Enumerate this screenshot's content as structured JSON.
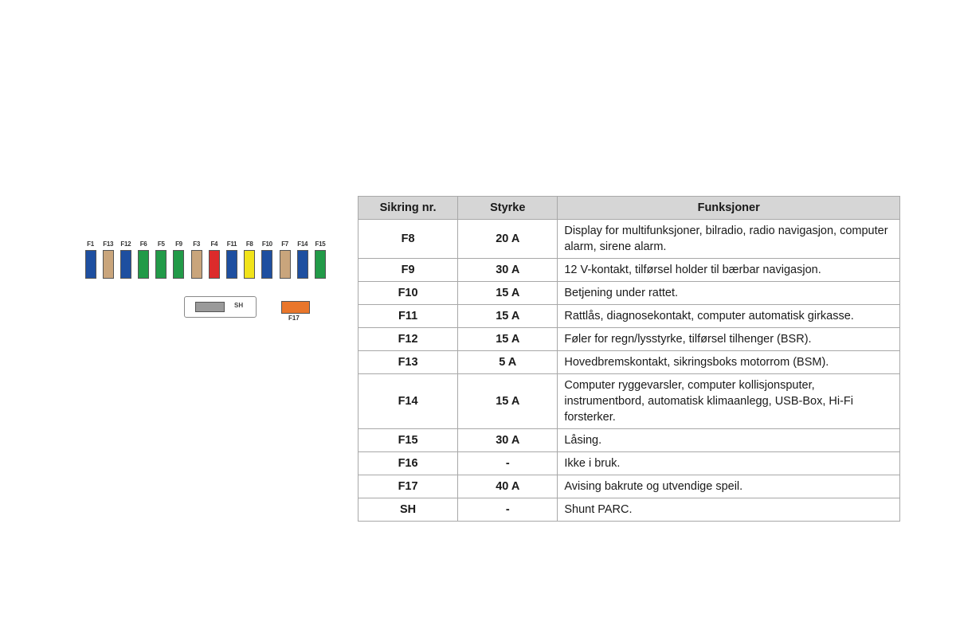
{
  "diagram": {
    "fuses": [
      {
        "label": "F1",
        "color": "#1e4fa0"
      },
      {
        "label": "F13",
        "color": "#c9a57c"
      },
      {
        "label": "F12",
        "color": "#1e4fa0"
      },
      {
        "label": "F6",
        "color": "#229a48"
      },
      {
        "label": "F5",
        "color": "#229a48"
      },
      {
        "label": "F9",
        "color": "#229a48"
      },
      {
        "label": "F3",
        "color": "#c9a57c"
      },
      {
        "label": "F4",
        "color": "#dc2b2b"
      },
      {
        "label": "F11",
        "color": "#1e4fa0"
      },
      {
        "label": "F8",
        "color": "#f1e31a"
      },
      {
        "label": "F10",
        "color": "#1e4fa0"
      },
      {
        "label": "F7",
        "color": "#c9a57c"
      },
      {
        "label": "F14",
        "color": "#1e4fa0"
      },
      {
        "label": "F15",
        "color": "#229a48"
      }
    ],
    "sh_label": "SH",
    "f17_label": "F17"
  },
  "table": {
    "headers": [
      "Sikring nr.",
      "Styrke",
      "Funksjoner"
    ],
    "rows": [
      {
        "id": "F8",
        "strength": "20 A",
        "func": "Display for multifunksjoner, bilradio, radio navigasjon, computer alarm, sirene alarm."
      },
      {
        "id": "F9",
        "strength": "30 A",
        "func": "12 V-kontakt, tilførsel holder til bærbar navigasjon."
      },
      {
        "id": "F10",
        "strength": "15 A",
        "func": "Betjening under rattet."
      },
      {
        "id": "F11",
        "strength": "15 A",
        "func": "Rattlås, diagnosekontakt, computer automatisk girkasse."
      },
      {
        "id": "F12",
        "strength": "15 A",
        "func": "Føler for regn/lysstyrke, tilførsel tilhenger (BSR)."
      },
      {
        "id": "F13",
        "strength": "5 A",
        "func": "Hovedbremskontakt, sikringsboks motorrom (BSM)."
      },
      {
        "id": "F14",
        "strength": "15 A",
        "func": "Computer ryggevarsler, computer kollisjonsputer, instrumentbord, automatisk klimaanlegg, USB-Box, Hi-Fi forsterker."
      },
      {
        "id": "F15",
        "strength": "30 A",
        "func": "Låsing."
      },
      {
        "id": "F16",
        "strength": "-",
        "func": "Ikke i bruk."
      },
      {
        "id": "F17",
        "strength": "40 A",
        "func": "Avising bakrute og utvendige speil."
      },
      {
        "id": "SH",
        "strength": "-",
        "func": "Shunt PARC."
      }
    ]
  }
}
